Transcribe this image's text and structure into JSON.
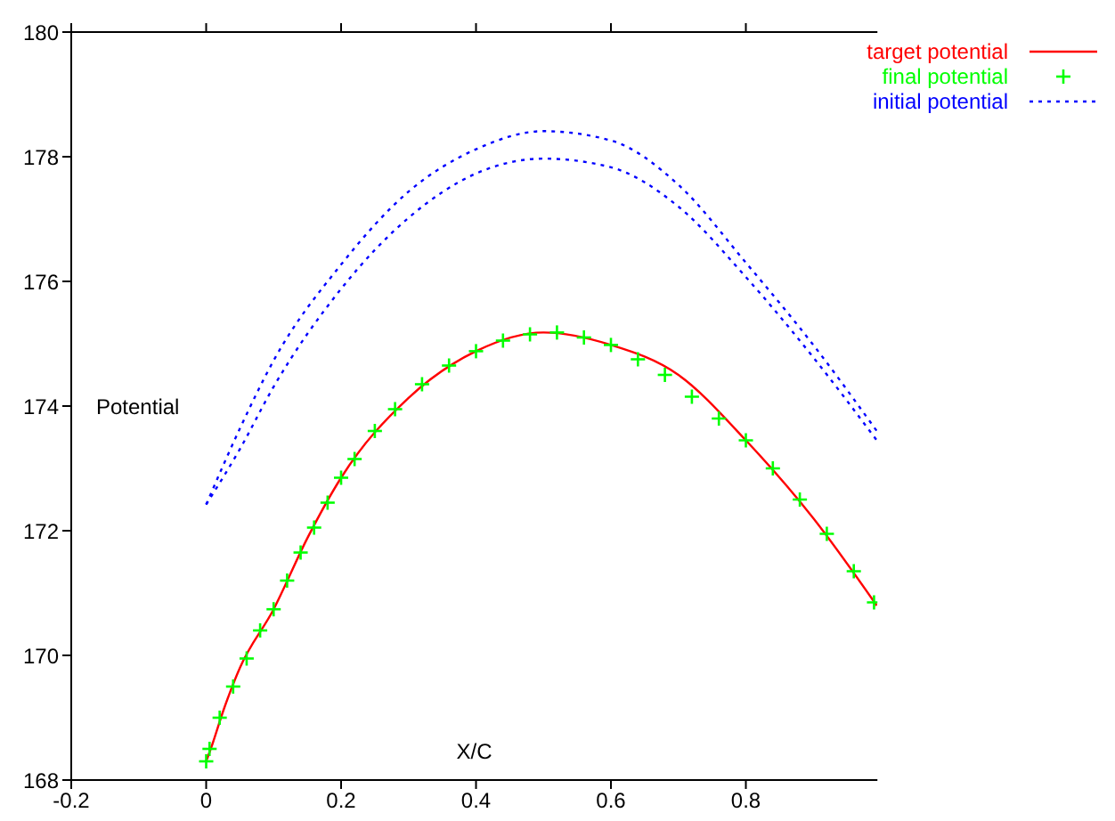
{
  "chart_data": {
    "type": "line",
    "xlabel": "X/C",
    "ylabel": "Potential",
    "xlim": [
      -0.2,
      0.995
    ],
    "ylim": [
      168,
      180
    ],
    "xticks": [
      -0.2,
      0,
      0.2,
      0.4,
      0.6,
      0.8
    ],
    "yticks": [
      168,
      170,
      172,
      174,
      176,
      178,
      180
    ],
    "grid": false,
    "legend": "top right",
    "series": [
      {
        "name": "target potential",
        "color": "#ff0000",
        "line_style": "solid",
        "x": [
          0,
          0.01,
          0.025,
          0.05,
          0.1,
          0.15,
          0.2,
          0.3,
          0.4,
          0.5,
          0.6,
          0.7,
          0.8,
          0.9,
          0.994
        ],
        "values": [
          168.3,
          168.6,
          169.1,
          169.8,
          170.74,
          171.88,
          172.85,
          174.13,
          174.88,
          175.18,
          174.98,
          174.5,
          173.45,
          172.2,
          170.8
        ]
      },
      {
        "name": "final potential",
        "type": "scatter",
        "color": "#00ff00",
        "marker": "cross",
        "x": [
          0,
          0.005,
          0.02,
          0.04,
          0.06,
          0.08,
          0.1,
          0.12,
          0.14,
          0.16,
          0.18,
          0.2,
          0.22,
          0.25,
          0.28,
          0.32,
          0.36,
          0.4,
          0.44,
          0.48,
          0.52,
          0.56,
          0.6,
          0.64,
          0.68,
          0.72,
          0.76,
          0.8,
          0.84,
          0.88,
          0.92,
          0.96,
          0.99
        ],
        "values": [
          168.3,
          168.5,
          169.0,
          169.5,
          169.95,
          170.4,
          170.74,
          171.2,
          171.65,
          172.05,
          172.45,
          172.85,
          173.15,
          173.6,
          173.95,
          174.35,
          174.65,
          174.88,
          175.05,
          175.15,
          175.18,
          175.1,
          174.98,
          174.75,
          174.5,
          174.15,
          173.8,
          173.45,
          173.0,
          172.5,
          171.95,
          171.35,
          170.85
        ]
      },
      {
        "name": "initial potential",
        "color": "#0000ff",
        "line_style": "dotted",
        "x": [
          0,
          0.05,
          0.1,
          0.2,
          0.3,
          0.4,
          0.5,
          0.6,
          0.7,
          0.8,
          0.9,
          0.994
        ],
        "values": [
          172.42,
          173.64,
          174.73,
          176.27,
          177.44,
          178.12,
          178.41,
          178.26,
          177.55,
          176.3,
          174.98,
          173.6
        ]
      },
      {
        "color": "#0000ff",
        "line_style": "dotted",
        "x": [
          0,
          0.05,
          0.1,
          0.2,
          0.3,
          0.4,
          0.5,
          0.6,
          0.7,
          0.8,
          0.9,
          0.994
        ],
        "values": [
          172.42,
          173.31,
          174.31,
          175.88,
          177.02,
          177.73,
          177.97,
          177.83,
          177.2,
          176.07,
          174.78,
          173.45
        ]
      }
    ]
  }
}
